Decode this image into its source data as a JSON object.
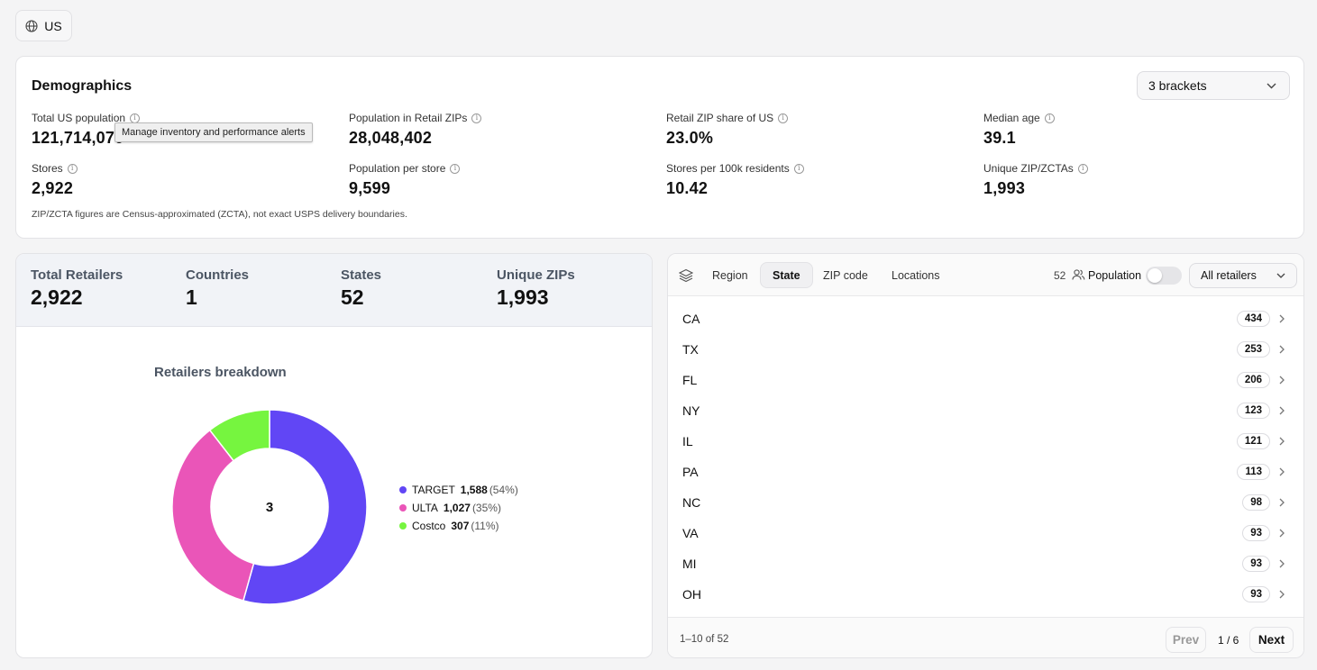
{
  "country": {
    "label": "US",
    "icon": "globe-icon"
  },
  "demographics": {
    "title": "Demographics",
    "brackets_label": "3 brackets",
    "stats": [
      {
        "label": "Total US population",
        "value": "121,714,070"
      },
      {
        "label": "Population in Retail ZIPs",
        "value": "28,048,402"
      },
      {
        "label": "Retail ZIP share of US",
        "value": "23.0%"
      },
      {
        "label": "Median age",
        "value": "39.1"
      },
      {
        "label": "Stores",
        "value": "2,922"
      },
      {
        "label": "Population per store",
        "value": "9,599"
      },
      {
        "label": "Stores per 100k residents",
        "value": "10.42"
      },
      {
        "label": "Unique ZIP/ZCTAs",
        "value": "1,993"
      }
    ],
    "note": "ZIP/ZCTA figures are Census-approximated (ZCTA), not exact USPS delivery boundaries.",
    "tooltip": "Manage inventory and performance alerts"
  },
  "summary": [
    {
      "label": "Total Retailers",
      "value": "2,922"
    },
    {
      "label": "Countries",
      "value": "1"
    },
    {
      "label": "States",
      "value": "52"
    },
    {
      "label": "Unique ZIPs",
      "value": "1,993"
    }
  ],
  "chart_data": {
    "type": "pie",
    "title": "Retailers breakdown",
    "center_label": "3",
    "series": [
      {
        "name": "TARGET",
        "value": 1588,
        "display": "1,588",
        "pct": "(54%)",
        "color": "#6146f5"
      },
      {
        "name": "ULTA",
        "value": 1027,
        "display": "1,027",
        "pct": "(35%)",
        "color": "#ea55b8"
      },
      {
        "name": "Costco",
        "value": 307,
        "display": "307",
        "pct": "(11%)",
        "color": "#76f53f"
      }
    ]
  },
  "geo": {
    "tabs": [
      {
        "label": "Region",
        "active": false
      },
      {
        "label": "State",
        "active": true
      },
      {
        "label": "ZIP code",
        "active": false
      },
      {
        "label": "Locations",
        "active": false
      }
    ],
    "count": "52",
    "population_label": "Population",
    "population_toggle_on": false,
    "retailer_filter": "All retailers",
    "rows": [
      {
        "state": "CA",
        "count": "434"
      },
      {
        "state": "TX",
        "count": "253"
      },
      {
        "state": "FL",
        "count": "206"
      },
      {
        "state": "NY",
        "count": "123"
      },
      {
        "state": "IL",
        "count": "121"
      },
      {
        "state": "PA",
        "count": "113"
      },
      {
        "state": "NC",
        "count": "98"
      },
      {
        "state": "VA",
        "count": "93"
      },
      {
        "state": "MI",
        "count": "93"
      },
      {
        "state": "OH",
        "count": "93"
      }
    ],
    "range": "1–10 of 52",
    "prev_label": "Prev",
    "page_indicator": "1 / 6",
    "next_label": "Next"
  }
}
